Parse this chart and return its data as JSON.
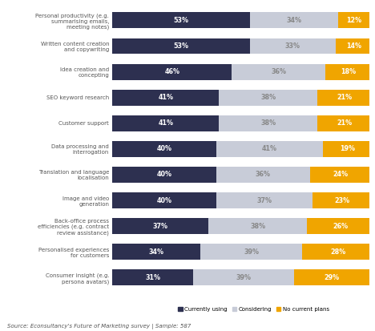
{
  "categories": [
    "Personal productivity (e.g.\nsummarising emails,\nmeeting notes)",
    "Written content creation\nand copywriting",
    "Idea creation and\nconcepting",
    "SEO keyword research",
    "Customer support",
    "Data processing and\ninterrogation",
    "Translation and language\nlocalisation",
    "Image and video\ngeneration",
    "Back-office process\nefficiencies (e.g. contract\nreview assistance)",
    "Personalised experiences\nfor customers",
    "Consumer insight (e.g.\npersona avatars)"
  ],
  "currently_using": [
    53,
    53,
    46,
    41,
    41,
    40,
    40,
    40,
    37,
    34,
    31
  ],
  "considering": [
    34,
    33,
    36,
    38,
    38,
    41,
    36,
    37,
    38,
    39,
    39
  ],
  "no_current_plans": [
    12,
    14,
    18,
    21,
    21,
    19,
    24,
    23,
    26,
    28,
    29
  ],
  "color_currently": "#2d3050",
  "color_considering": "#c8ccd8",
  "color_no_plans": "#f0a500",
  "background_color": "#ffffff",
  "source_text": "Source: Econsultancy's Future of Marketing survey | Sample: 587",
  "legend_labels": [
    "Currently using",
    "Considering",
    "No current plans"
  ],
  "text_color_label": "#555555",
  "considering_text_color": "#888888",
  "bar_height": 0.62
}
